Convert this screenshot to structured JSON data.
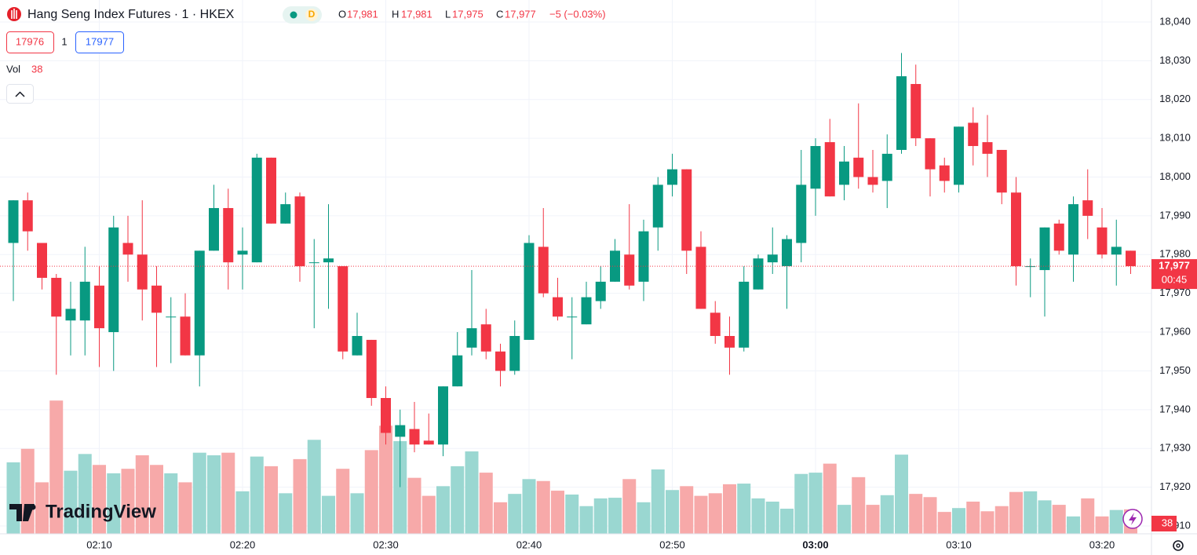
{
  "header": {
    "symbol": "Hang Seng Index Futures · 1 · HKEX",
    "status": "D",
    "ohlc": [
      {
        "key": "O",
        "value": "17,981"
      },
      {
        "key": "H",
        "value": "17,981"
      },
      {
        "key": "L",
        "value": "17,975"
      },
      {
        "key": "C",
        "value": "17,977"
      }
    ],
    "change": "−5 (−0.03%)",
    "bid": "17976",
    "qty": "1",
    "ask": "17977",
    "vol_label": "Vol",
    "brand": "TradingView",
    "price_tag": "17,977",
    "countdown": "00:45"
  },
  "chart_data": {
    "type": "candlestick",
    "categories": [
      null,
      null,
      null,
      null,
      null,
      null,
      "02:10",
      null,
      null,
      null,
      null,
      null,
      null,
      null,
      null,
      null,
      "02:20",
      null,
      null,
      null,
      null,
      null,
      null,
      null,
      null,
      null,
      "02:30",
      null,
      null,
      null,
      null,
      null,
      null,
      null,
      null,
      null,
      "02:40",
      null,
      null,
      null,
      null,
      null,
      null,
      null,
      null,
      null,
      "02:50",
      null,
      null,
      null,
      null,
      null,
      null,
      null,
      null,
      null,
      "03:00",
      null,
      null,
      null,
      null,
      null,
      null,
      null,
      null,
      null,
      "03:10",
      null,
      null,
      null,
      null,
      null,
      null,
      null,
      null,
      null,
      "03:20",
      null,
      null
    ],
    "open": [
      17983,
      17994,
      17983,
      17974,
      17963,
      17963,
      17972,
      17960,
      17983,
      17980,
      17972,
      17964,
      17964,
      17954,
      17981,
      17992,
      17980,
      17978,
      18005,
      17988,
      17995,
      17978,
      17978,
      17977,
      17954,
      17958,
      17943,
      17933,
      17935,
      17932,
      17931,
      17946,
      17956,
      17962,
      17955,
      17950,
      17958,
      17982,
      17969,
      17964,
      17962,
      17968,
      17973,
      17980,
      17973,
      17987,
      17998,
      18002,
      17982,
      17965,
      17959,
      17956,
      17971,
      17978,
      17977,
      17983,
      17997,
      18009,
      17998,
      18005,
      18000,
      17999,
      18007,
      18024,
      18010,
      18003,
      17998,
      18014,
      18009,
      18007,
      17996,
      17977,
      17976,
      17988,
      17980,
      17994,
      17987,
      17980,
      17981
    ],
    "high": [
      17994,
      17996,
      17983,
      17975,
      17973,
      17982,
      17977,
      17990,
      17990,
      17994,
      17977,
      17969,
      17970,
      17981,
      17998,
      17997,
      17987,
      18006,
      18005,
      17996,
      17996,
      17984,
      17993,
      17977,
      17965,
      17958,
      17946,
      17940,
      17942,
      17939,
      17946,
      17960,
      17976,
      17966,
      17957,
      17963,
      17985,
      17992,
      17974,
      17969,
      17973,
      17977,
      17984,
      17993,
      17989,
      18000,
      18006,
      18002,
      17986,
      17968,
      17964,
      17977,
      17980,
      17987,
      17985,
      18007,
      18010,
      18015,
      18008,
      18019,
      18007,
      18011,
      18032,
      18029,
      18010,
      18005,
      18013,
      18018,
      18016,
      18007,
      18000,
      17979,
      17987,
      17989,
      17995,
      18002,
      17992,
      17989,
      17981
    ],
    "low": [
      17968,
      17981,
      17971,
      17949,
      17954,
      17954,
      17951,
      17950,
      17973,
      17963,
      17951,
      17952,
      17954,
      17946,
      17981,
      17971,
      17971,
      17978,
      17988,
      17988,
      17973,
      17961,
      17966,
      17953,
      17954,
      17941,
      17931,
      17920,
      17929,
      17931,
      17928,
      17946,
      17954,
      17953,
      17946,
      17949,
      17958,
      17969,
      17963,
      17953,
      17962,
      17966,
      17973,
      17971,
      17968,
      17981,
      17995,
      17975,
      17966,
      17957,
      17949,
      17955,
      17971,
      17975,
      17966,
      17978,
      17990,
      17995,
      17994,
      17997,
      17996,
      17992,
      18006,
      18008,
      17995,
      17996,
      17996,
      18003,
      18000,
      17993,
      17972,
      17969,
      17964,
      17980,
      17973,
      17984,
      17979,
      17972,
      17975
    ],
    "close": [
      17994,
      17986,
      17974,
      17964,
      17966,
      17973,
      17961,
      17987,
      17980,
      17971,
      17965,
      17964,
      17954,
      17981,
      17992,
      17978,
      17981,
      18005,
      17988,
      17993,
      17977,
      17978,
      17979,
      17955,
      17959,
      17943,
      17934,
      17936,
      17931,
      17931,
      17946,
      17954,
      17961,
      17955,
      17950,
      17959,
      17983,
      17970,
      17964,
      17964,
      17969,
      17973,
      17981,
      17972,
      17986,
      17998,
      18002,
      17981,
      17966,
      17959,
      17956,
      17973,
      17979,
      17980,
      17984,
      17998,
      18008,
      17995,
      18004,
      18000,
      17998,
      18006,
      18026,
      18010,
      18002,
      17999,
      18013,
      18008,
      18006,
      17996,
      17977,
      17977,
      17987,
      17981,
      17993,
      17990,
      17980,
      17982,
      17977
    ],
    "volume": [
      111,
      132,
      80,
      207,
      98,
      124,
      107,
      94,
      101,
      122,
      107,
      94,
      80,
      126,
      122,
      126,
      66,
      120,
      105,
      63,
      116,
      146,
      59,
      101,
      63,
      130,
      168,
      144,
      87,
      59,
      74,
      105,
      128,
      95,
      49,
      62,
      85,
      82,
      67,
      61,
      43,
      55,
      56,
      85,
      49,
      100,
      68,
      74,
      59,
      63,
      77,
      78,
      55,
      50,
      39,
      93,
      95,
      109,
      45,
      88,
      45,
      60,
      123,
      62,
      57,
      34,
      40,
      50,
      35,
      43,
      65,
      66,
      52,
      45,
      27,
      55,
      27,
      37,
      38
    ],
    "ylim": [
      17907.97,
      18045.67
    ],
    "yticks": [
      {
        "value": 18040,
        "label": "18,040"
      },
      {
        "value": 18030,
        "label": "18,030"
      },
      {
        "value": 18020,
        "label": "18,020"
      },
      {
        "value": 18010,
        "label": "18,010"
      },
      {
        "value": 18000,
        "label": "18,000"
      },
      {
        "value": 17990,
        "label": "17,990"
      },
      {
        "value": 17980,
        "label": "17,980"
      },
      {
        "value": 17970,
        "label": "17,970"
      },
      {
        "value": 17960,
        "label": "17,960"
      },
      {
        "value": 17950,
        "label": "17,950"
      },
      {
        "value": 17940,
        "label": "17,940"
      },
      {
        "value": 17930,
        "label": "17,930"
      },
      {
        "value": 17920,
        "label": "17,920"
      },
      {
        "value": 17910,
        "label": "17,910"
      }
    ],
    "up_color": "#089981",
    "down_color": "#f23645",
    "up_volume_color": "#9ad7d1",
    "down_volume_color": "#f7a9a9",
    "grid": true
  }
}
